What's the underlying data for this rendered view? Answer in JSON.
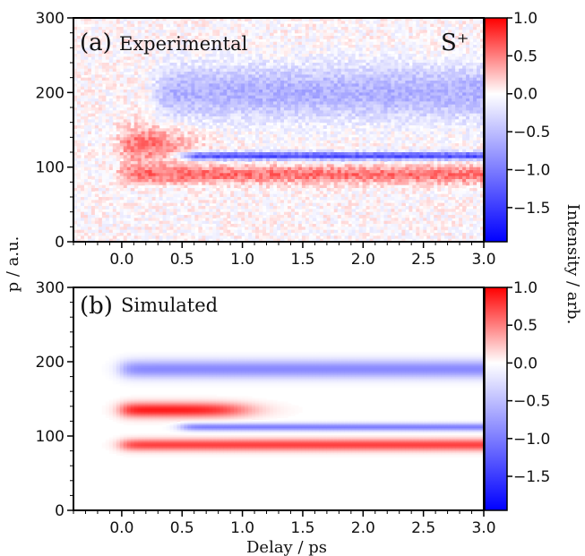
{
  "chart_data": {
    "type": "heatmap",
    "xlabel": "Delay / ps",
    "ylabel": "p / a.u.",
    "colorbar_label": "Intensity / arb.",
    "xlim": [
      -0.4,
      3.0
    ],
    "ylim": [
      0,
      300
    ],
    "xticks": [
      "0.0",
      "0.5",
      "1.0",
      "1.5",
      "2.0",
      "2.5",
      "3.0"
    ],
    "yticks": [
      "0",
      "100",
      "200",
      "300"
    ],
    "colorbar": {
      "range": [
        -1.95,
        1.0
      ],
      "ticks": [
        "1.0",
        "0.5",
        "0.0",
        "−0.5",
        "−1.0",
        "−1.5"
      ],
      "colors": {
        "positive": "#ff0000",
        "zero": "#ffffff",
        "negative": "#0000ff"
      }
    },
    "panels": [
      {
        "label": "(a)",
        "title": "Experimental",
        "annotation": "S⁺",
        "features": [
          {
            "kind": "positive",
            "p_center": 130,
            "p_width": 25,
            "delay_range": [
              0.0,
              0.5
            ],
            "intensity": 0.6
          },
          {
            "kind": "positive",
            "p_center": 90,
            "p_width": 12,
            "delay_range": [
              0.0,
              3.0
            ],
            "intensity": 0.55
          },
          {
            "kind": "negative",
            "p_center": 115,
            "p_width": 5,
            "delay_range": [
              0.5,
              3.0
            ],
            "intensity": -1.4
          },
          {
            "kind": "negative",
            "p_center": 200,
            "p_width": 35,
            "delay_range": [
              0.3,
              3.0
            ],
            "intensity": -0.6
          }
        ]
      },
      {
        "label": "(b)",
        "title": "Simulated",
        "features": [
          {
            "kind": "positive",
            "p_center": 135,
            "p_width": 10,
            "delay_range": [
              0.0,
              1.0
            ],
            "intensity": 0.9
          },
          {
            "kind": "positive",
            "p_center": 88,
            "p_width": 8,
            "delay_range": [
              0.0,
              3.0
            ],
            "intensity": 0.75
          },
          {
            "kind": "negative",
            "p_center": 112,
            "p_width": 5,
            "delay_range": [
              0.5,
              3.0
            ],
            "intensity": -1.0
          },
          {
            "kind": "negative",
            "p_center": 190,
            "p_width": 12,
            "delay_range": [
              0.0,
              3.0
            ],
            "intensity": -0.9
          }
        ]
      }
    ]
  }
}
